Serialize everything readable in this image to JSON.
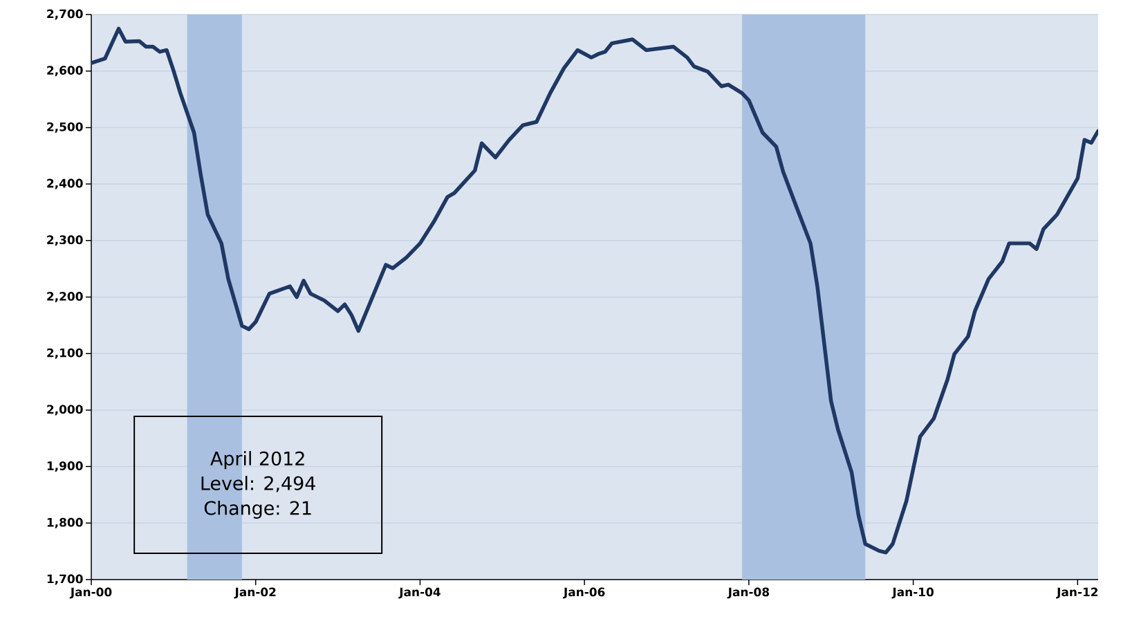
{
  "chart_data": {
    "type": "line",
    "x": [
      "2000-01",
      "2000-03",
      "2000-05",
      "2000-06",
      "2000-08",
      "2000-09",
      "2000-10",
      "2000-11",
      "2000-12",
      "2001-01",
      "2001-02",
      "2001-04",
      "2001-05",
      "2001-06",
      "2001-08",
      "2001-09",
      "2001-11",
      "2001-12",
      "2002-01",
      "2002-03",
      "2002-06",
      "2002-07",
      "2002-08",
      "2002-09",
      "2002-11",
      "2003-01",
      "2003-02",
      "2003-03",
      "2003-04",
      "2003-08",
      "2003-09",
      "2003-11",
      "2004-01",
      "2004-03",
      "2004-05",
      "2004-06",
      "2004-09",
      "2004-10",
      "2004-12",
      "2005-02",
      "2005-04",
      "2005-06",
      "2005-08",
      "2005-10",
      "2005-12",
      "2006-02",
      "2006-03",
      "2006-04",
      "2006-05",
      "2006-08",
      "2006-10",
      "2006-12",
      "2007-02",
      "2007-04",
      "2007-05",
      "2007-07",
      "2007-09",
      "2007-10",
      "2007-12",
      "2008-01",
      "2008-03",
      "2008-05",
      "2008-06",
      "2008-08",
      "2008-10",
      "2008-11",
      "2008-12",
      "2009-01",
      "2009-02",
      "2009-04",
      "2009-05",
      "2009-06",
      "2009-08",
      "2009-09",
      "2009-10",
      "2009-12",
      "2010-02",
      "2010-04",
      "2010-06",
      "2010-07",
      "2010-09",
      "2010-10",
      "2010-12",
      "2011-02",
      "2011-03",
      "2011-06",
      "2011-07",
      "2011-08",
      "2011-10",
      "2012-01",
      "2012-02",
      "2012-03",
      "2012-04"
    ],
    "series": [
      {
        "color": "#1f3864",
        "values": [
          2614,
          2622,
          2675,
          2652,
          2653,
          2643,
          2643,
          2634,
          2637,
          2601,
          2561,
          2491,
          2415,
          2346,
          2295,
          2232,
          2149,
          2143,
          2156,
          2206,
          2219,
          2200,
          2229,
          2206,
          2194,
          2175,
          2187,
          2168,
          2140,
          2257,
          2251,
          2270,
          2295,
          2333,
          2377,
          2384,
          2424,
          2472,
          2447,
          2478,
          2504,
          2510,
          2561,
          2605,
          2637,
          2624,
          2630,
          2634,
          2649,
          2656,
          2637,
          2640,
          2643,
          2624,
          2608,
          2599,
          2573,
          2576,
          2561,
          2548,
          2491,
          2466,
          2422,
          2358,
          2295,
          2219,
          2118,
          2016,
          1966,
          1890,
          1814,
          1763,
          1751,
          1748,
          1763,
          1839,
          1953,
          1985,
          2054,
          2099,
          2130,
          2175,
          2232,
          2263,
          2295,
          2295,
          2285,
          2320,
          2346,
          2410,
          2478,
          2473,
          2494
        ]
      }
    ],
    "xlim": [
      "2000-01",
      "2012-04"
    ],
    "xticks": [
      {
        "value": "2000-01",
        "label": "Jan-00"
      },
      {
        "value": "2002-01",
        "label": "Jan-02"
      },
      {
        "value": "2004-01",
        "label": "Jan-04"
      },
      {
        "value": "2006-01",
        "label": "Jan-06"
      },
      {
        "value": "2008-01",
        "label": "Jan-08"
      },
      {
        "value": "2010-01",
        "label": "Jan-10"
      },
      {
        "value": "2012-01",
        "label": "Jan-12"
      }
    ],
    "ylim": [
      1700,
      2700
    ],
    "yticks": [
      {
        "value": 1700,
        "label": "1,700"
      },
      {
        "value": 1800,
        "label": "1,800"
      },
      {
        "value": 1900,
        "label": "1,900"
      },
      {
        "value": 2000,
        "label": "2,000"
      },
      {
        "value": 2100,
        "label": "2,100"
      },
      {
        "value": 2200,
        "label": "2,200"
      },
      {
        "value": 2300,
        "label": "2,300"
      },
      {
        "value": 2400,
        "label": "2,400"
      },
      {
        "value": 2500,
        "label": "2,500"
      },
      {
        "value": 2600,
        "label": "2,600"
      },
      {
        "value": 2700,
        "label": "2,700"
      }
    ],
    "grid": "y",
    "bands": [
      {
        "axis": "x",
        "from": "2001-03",
        "to": "2001-11",
        "color": "#a9c0e0"
      },
      {
        "axis": "x",
        "from": "2007-12",
        "to": "2009-06",
        "color": "#a9c0e0"
      }
    ],
    "annotations": [
      "April 2012",
      "Level: 2,494",
      "Change: 21"
    ]
  }
}
